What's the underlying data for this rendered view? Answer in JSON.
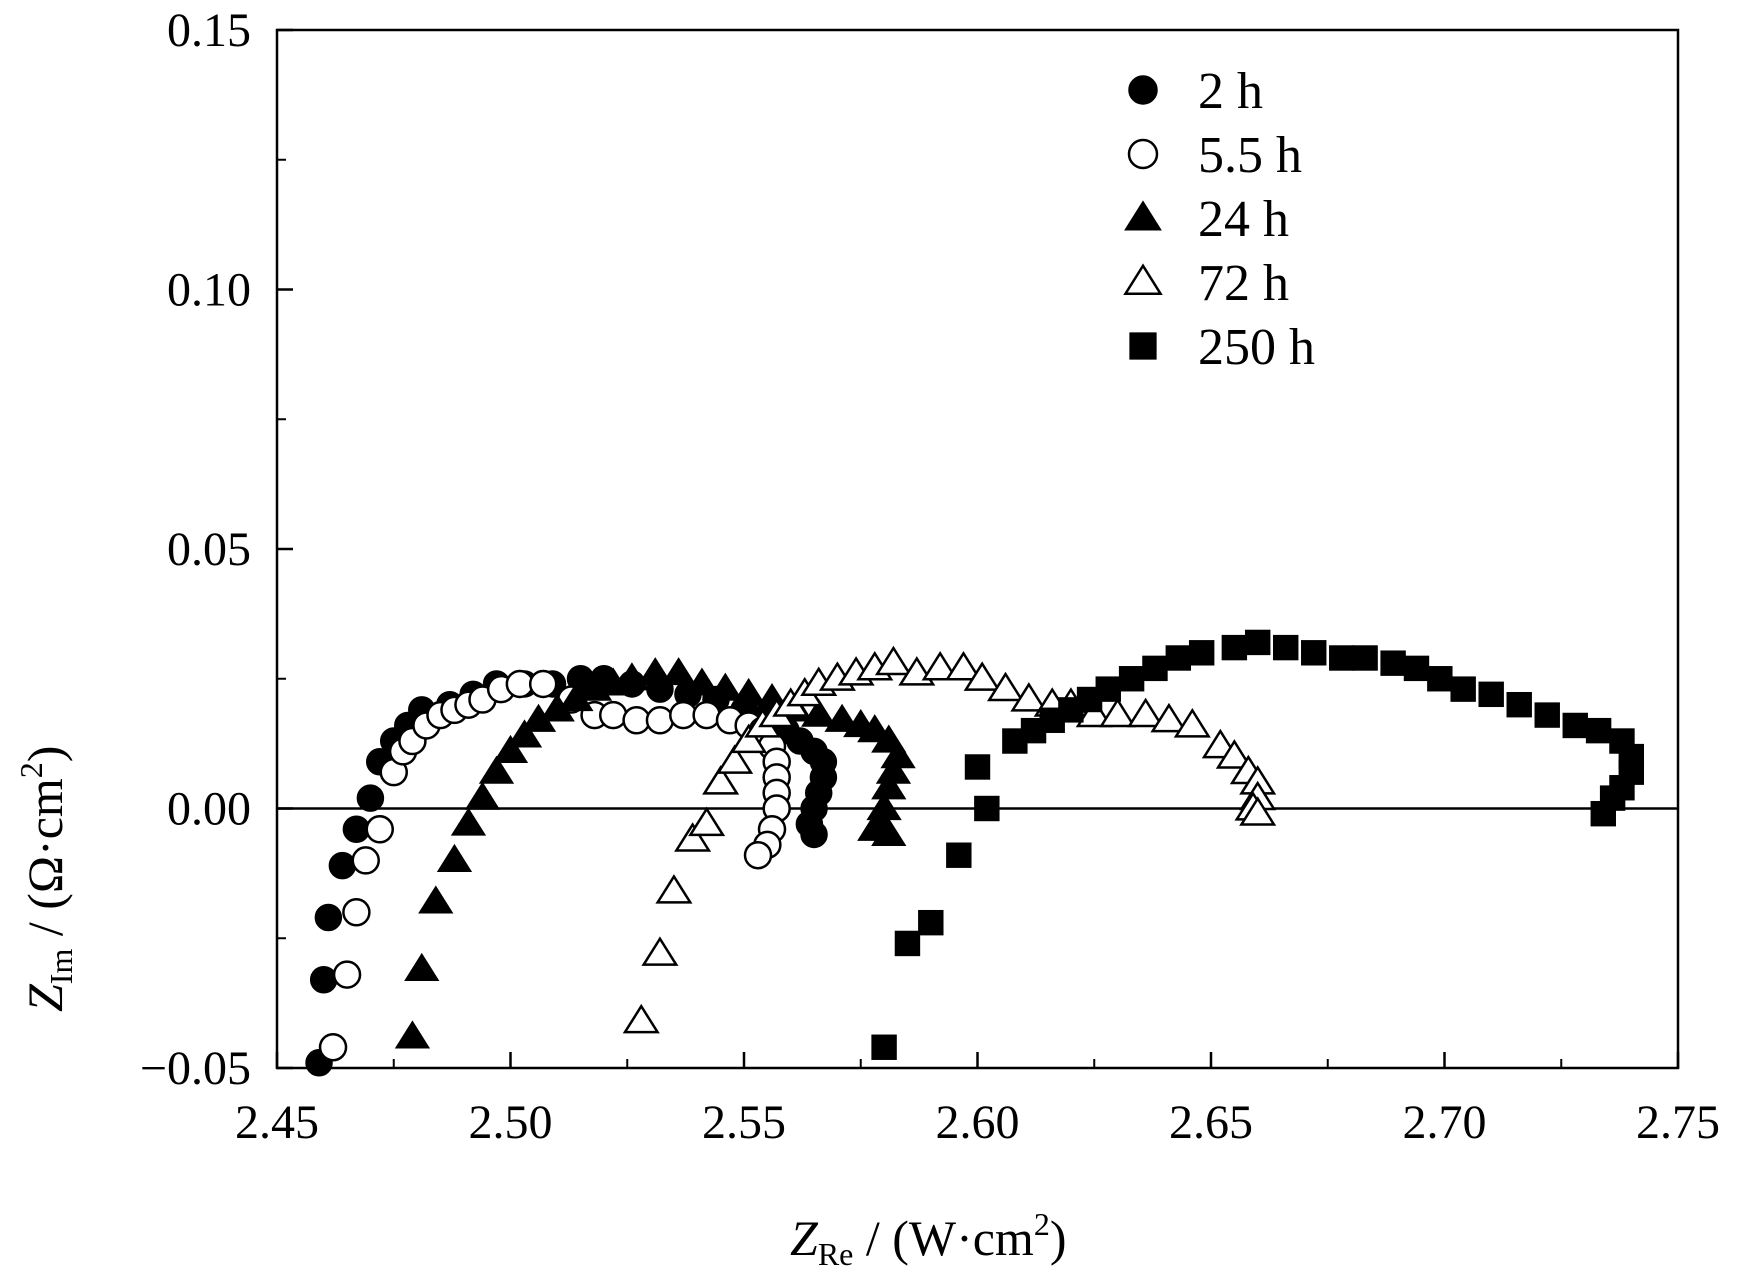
{
  "chart_data": {
    "type": "scatter",
    "xlabel": {
      "main": "Z",
      "sub": "Re",
      "rest": " / (W·cm",
      "sup": "2",
      "end": ")"
    },
    "ylabel": {
      "main": "Z",
      "sub": "Im",
      "rest": " / (Ω·cm",
      "sup": "2",
      "end": ")"
    },
    "xlim": [
      2.45,
      2.75
    ],
    "ylim": [
      -0.05,
      0.15
    ],
    "xticks": [
      "2.45",
      "2.50",
      "2.55",
      "2.60",
      "2.65",
      "2.70",
      "2.75"
    ],
    "yticks": [
      "-0.05",
      "0.00",
      "0.05",
      "0.10",
      "0.15"
    ],
    "zero_line": true,
    "legend_position": "top-right",
    "series": [
      {
        "name": "2 h",
        "marker": "circle",
        "filled": true,
        "points": [
          [
            2.459,
            -0.049
          ],
          [
            2.46,
            -0.033
          ],
          [
            2.461,
            -0.021
          ],
          [
            2.464,
            -0.011
          ],
          [
            2.467,
            -0.004
          ],
          [
            2.47,
            0.002
          ],
          [
            2.472,
            0.009
          ],
          [
            2.475,
            0.013
          ],
          [
            2.478,
            0.016
          ],
          [
            2.481,
            0.019
          ],
          [
            2.487,
            0.02
          ],
          [
            2.492,
            0.022
          ],
          [
            2.497,
            0.024
          ],
          [
            2.503,
            0.024
          ],
          [
            2.509,
            0.024
          ],
          [
            2.515,
            0.025
          ],
          [
            2.52,
            0.025
          ],
          [
            2.526,
            0.024
          ],
          [
            2.532,
            0.023
          ],
          [
            2.538,
            0.022
          ],
          [
            2.544,
            0.021
          ],
          [
            2.55,
            0.019
          ],
          [
            2.555,
            0.017
          ],
          [
            2.559,
            0.015
          ],
          [
            2.562,
            0.013
          ],
          [
            2.565,
            0.011
          ],
          [
            2.567,
            0.009
          ],
          [
            2.567,
            0.006
          ],
          [
            2.566,
            0.003
          ],
          [
            2.565,
            0.0
          ],
          [
            2.564,
            -0.003
          ],
          [
            2.565,
            -0.005
          ]
        ]
      },
      {
        "name": "5.5 h",
        "marker": "circle",
        "filled": false,
        "points": [
          [
            2.462,
            -0.046
          ],
          [
            2.465,
            -0.032
          ],
          [
            2.467,
            -0.02
          ],
          [
            2.469,
            -0.01
          ],
          [
            2.472,
            -0.004
          ],
          [
            2.475,
            0.007
          ],
          [
            2.477,
            0.011
          ],
          [
            2.479,
            0.013
          ],
          [
            2.482,
            0.016
          ],
          [
            2.485,
            0.018
          ],
          [
            2.488,
            0.019
          ],
          [
            2.491,
            0.02
          ],
          [
            2.494,
            0.021
          ],
          [
            2.498,
            0.023
          ],
          [
            2.502,
            0.024
          ],
          [
            2.507,
            0.024
          ],
          [
            2.513,
            0.021
          ],
          [
            2.518,
            0.018
          ],
          [
            2.522,
            0.018
          ],
          [
            2.527,
            0.017
          ],
          [
            2.532,
            0.017
          ],
          [
            2.537,
            0.018
          ],
          [
            2.542,
            0.018
          ],
          [
            2.547,
            0.017
          ],
          [
            2.551,
            0.016
          ],
          [
            2.554,
            0.015
          ],
          [
            2.556,
            0.012
          ],
          [
            2.557,
            0.009
          ],
          [
            2.557,
            0.006
          ],
          [
            2.557,
            0.003
          ],
          [
            2.557,
            0.0
          ],
          [
            2.556,
            -0.004
          ],
          [
            2.555,
            -0.007
          ],
          [
            2.553,
            -0.009
          ]
        ]
      },
      {
        "name": "24 h",
        "marker": "triangle",
        "filled": true,
        "points": [
          [
            2.479,
            -0.044
          ],
          [
            2.481,
            -0.031
          ],
          [
            2.484,
            -0.018
          ],
          [
            2.488,
            -0.01
          ],
          [
            2.491,
            -0.003
          ],
          [
            2.494,
            0.002
          ],
          [
            2.497,
            0.007
          ],
          [
            2.5,
            0.011
          ],
          [
            2.503,
            0.014
          ],
          [
            2.506,
            0.017
          ],
          [
            2.51,
            0.019
          ],
          [
            2.514,
            0.021
          ],
          [
            2.518,
            0.023
          ],
          [
            2.522,
            0.024
          ],
          [
            2.526,
            0.025
          ],
          [
            2.531,
            0.026
          ],
          [
            2.536,
            0.026
          ],
          [
            2.541,
            0.024
          ],
          [
            2.546,
            0.023
          ],
          [
            2.551,
            0.022
          ],
          [
            2.556,
            0.021
          ],
          [
            2.561,
            0.019
          ],
          [
            2.566,
            0.018
          ],
          [
            2.571,
            0.017
          ],
          [
            2.575,
            0.016
          ],
          [
            2.578,
            0.015
          ],
          [
            2.581,
            0.013
          ],
          [
            2.583,
            0.01
          ],
          [
            2.582,
            0.007
          ],
          [
            2.581,
            0.004
          ],
          [
            2.58,
            0.0
          ],
          [
            2.579,
            -0.003
          ],
          [
            2.581,
            -0.005
          ],
          [
            2.578,
            -0.004
          ]
        ]
      },
      {
        "name": "72 h",
        "marker": "triangle",
        "filled": false,
        "points": [
          [
            2.528,
            -0.041
          ],
          [
            2.532,
            -0.028
          ],
          [
            2.535,
            -0.016
          ],
          [
            2.539,
            -0.006
          ],
          [
            2.542,
            -0.003
          ],
          [
            2.545,
            0.005
          ],
          [
            2.548,
            0.009
          ],
          [
            2.551,
            0.013
          ],
          [
            2.554,
            0.016
          ],
          [
            2.557,
            0.018
          ],
          [
            2.56,
            0.02
          ],
          [
            2.563,
            0.022
          ],
          [
            2.566,
            0.024
          ],
          [
            2.57,
            0.025
          ],
          [
            2.574,
            0.026
          ],
          [
            2.578,
            0.027
          ],
          [
            2.582,
            0.028
          ],
          [
            2.587,
            0.026
          ],
          [
            2.592,
            0.027
          ],
          [
            2.597,
            0.027
          ],
          [
            2.601,
            0.025
          ],
          [
            2.606,
            0.023
          ],
          [
            2.611,
            0.021
          ],
          [
            2.616,
            0.02
          ],
          [
            2.62,
            0.02
          ],
          [
            2.625,
            0.018
          ],
          [
            2.63,
            0.018
          ],
          [
            2.636,
            0.018
          ],
          [
            2.641,
            0.017
          ],
          [
            2.646,
            0.016
          ],
          [
            2.652,
            0.012
          ],
          [
            2.655,
            0.01
          ],
          [
            2.658,
            0.007
          ],
          [
            2.66,
            0.005
          ],
          [
            2.66,
            0.002
          ],
          [
            2.659,
            0.0
          ],
          [
            2.66,
            -0.001
          ]
        ]
      },
      {
        "name": "250 h",
        "marker": "square",
        "filled": true,
        "points": [
          [
            2.58,
            -0.046
          ],
          [
            2.585,
            -0.026
          ],
          [
            2.59,
            -0.022
          ],
          [
            2.596,
            -0.009
          ],
          [
            2.602,
            0.0
          ],
          [
            2.6,
            0.008
          ],
          [
            2.608,
            0.013
          ],
          [
            2.612,
            0.015
          ],
          [
            2.616,
            0.017
          ],
          [
            2.62,
            0.019
          ],
          [
            2.624,
            0.021
          ],
          [
            2.628,
            0.023
          ],
          [
            2.633,
            0.025
          ],
          [
            2.638,
            0.027
          ],
          [
            2.643,
            0.029
          ],
          [
            2.648,
            0.03
          ],
          [
            2.655,
            0.031
          ],
          [
            2.66,
            0.032
          ],
          [
            2.666,
            0.031
          ],
          [
            2.672,
            0.03
          ],
          [
            2.678,
            0.029
          ],
          [
            2.683,
            0.029
          ],
          [
            2.689,
            0.028
          ],
          [
            2.694,
            0.027
          ],
          [
            2.699,
            0.025
          ],
          [
            2.704,
            0.023
          ],
          [
            2.71,
            0.022
          ],
          [
            2.716,
            0.02
          ],
          [
            2.722,
            0.018
          ],
          [
            2.728,
            0.016
          ],
          [
            2.733,
            0.015
          ],
          [
            2.738,
            0.013
          ],
          [
            2.74,
            0.01
          ],
          [
            2.74,
            0.007
          ],
          [
            2.738,
            0.004
          ],
          [
            2.736,
            0.002
          ],
          [
            2.734,
            -0.001
          ]
        ]
      }
    ]
  }
}
